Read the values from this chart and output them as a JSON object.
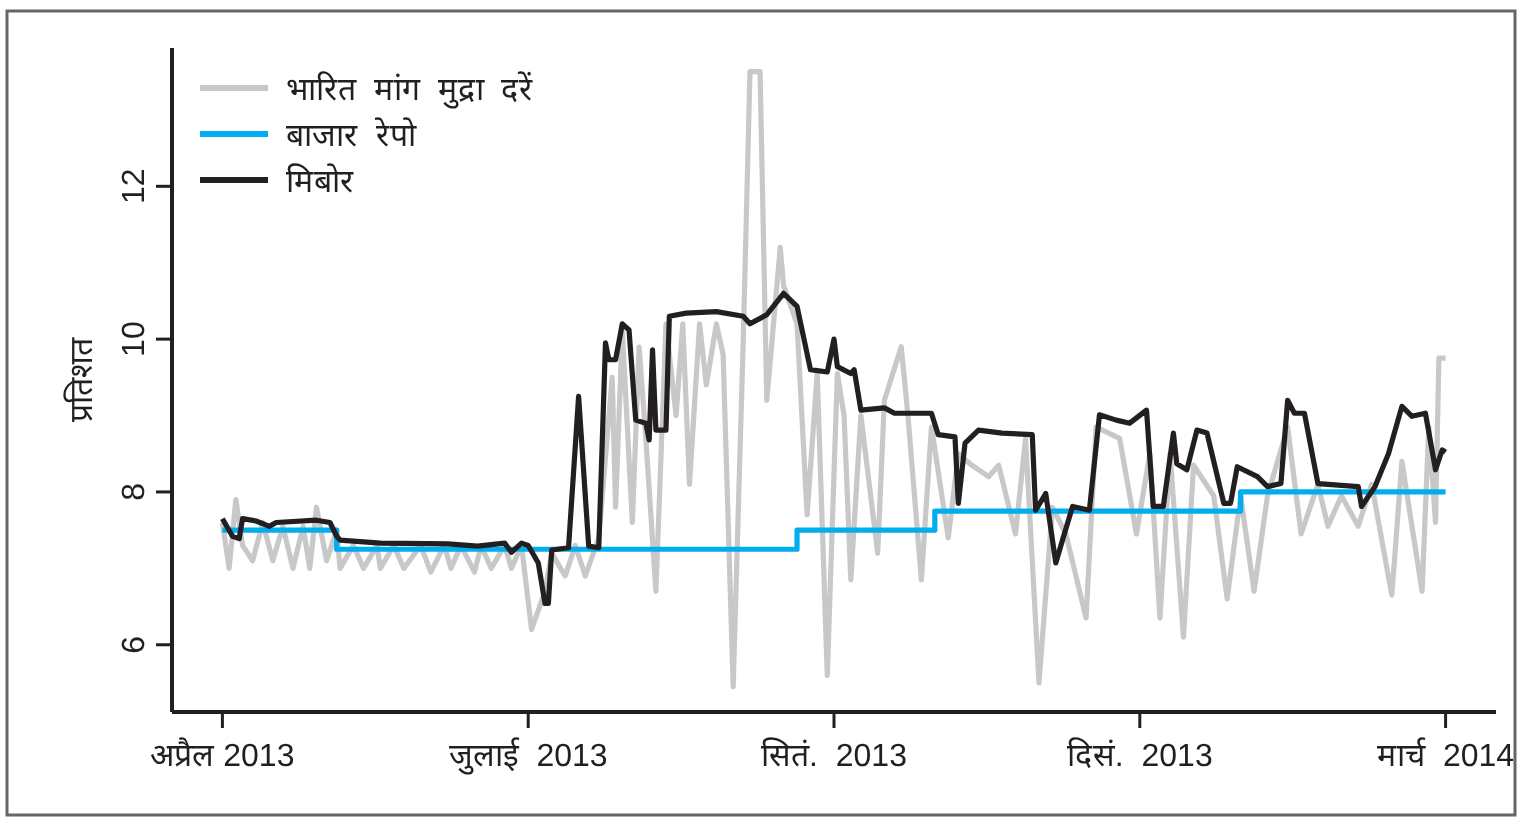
{
  "chart_data": {
    "type": "line",
    "ylabel": "प्रतिशत",
    "xlim": [
      "2013-03-17",
      "2014-04-15"
    ],
    "ylim": [
      5.12,
      13.81
    ],
    "xticks": [
      {
        "value": "2013-04-01",
        "label": "अप्रैल 2013"
      },
      {
        "value": "2013-07-01",
        "label": "जुलाई  2013"
      },
      {
        "value": "2013-09-30",
        "label": "सितं.  2013"
      },
      {
        "value": "2013-12-30",
        "label": "दिसं.  2013"
      },
      {
        "value": "2014-03-31",
        "label": "मार्च  2014"
      }
    ],
    "yticks": [
      6,
      8,
      10,
      12
    ],
    "legend": "top left",
    "grid": false,
    "series": [
      {
        "name": "भारित  मांग  मुद्रा  दरें",
        "color": "#c8c8c8",
        "type": "line",
        "x": [
          "2013-04-01",
          "2013-04-03",
          "2013-04-05",
          "2013-04-07",
          "2013-04-10",
          "2013-04-13",
          "2013-04-16",
          "2013-04-19",
          "2013-04-22",
          "2013-04-25",
          "2013-04-27",
          "2013-04-29",
          "2013-05-02",
          "2013-05-05",
          "2013-05-06",
          "2013-05-10",
          "2013-05-13",
          "2013-05-17",
          "2013-05-18",
          "2013-05-22",
          "2013-05-25",
          "2013-05-30",
          "2013-06-02",
          "2013-06-06",
          "2013-06-08",
          "2013-06-11",
          "2013-06-15",
          "2013-06-17",
          "2013-06-20",
          "2013-06-24",
          "2013-06-26",
          "2013-06-29",
          "2013-07-02",
          "2013-07-06",
          "2013-07-08",
          "2013-07-12",
          "2013-07-15",
          "2013-07-18",
          "2013-07-22",
          "2013-07-26",
          "2013-07-27",
          "2013-07-29",
          "2013-08-01",
          "2013-08-03",
          "2013-08-05",
          "2013-08-08",
          "2013-08-11",
          "2013-08-14",
          "2013-08-16",
          "2013-08-18",
          "2013-08-21",
          "2013-08-23",
          "2013-08-26",
          "2013-08-28",
          "2013-08-31",
          "2013-09-03",
          "2013-09-05",
          "2013-09-08",
          "2013-09-10",
          "2013-09-14",
          "2013-09-15",
          "2013-09-19",
          "2013-09-22",
          "2013-09-25",
          "2013-09-28",
          "2013-10-01",
          "2013-10-03",
          "2013-10-05",
          "2013-10-08",
          "2013-10-13",
          "2013-10-15",
          "2013-10-20",
          "2013-10-22",
          "2013-10-26",
          "2013-10-29",
          "2013-11-03",
          "2013-11-06",
          "2013-11-10",
          "2013-11-15",
          "2013-11-18",
          "2013-11-23",
          "2013-11-26",
          "2013-11-30",
          "2013-12-04",
          "2013-12-08",
          "2013-12-14",
          "2013-12-17",
          "2013-12-24",
          "2013-12-29",
          "2014-01-02",
          "2014-01-05",
          "2014-01-08",
          "2014-01-12",
          "2014-01-15",
          "2014-01-21",
          "2014-01-25",
          "2014-01-29",
          "2014-02-02",
          "2014-02-06",
          "2014-02-12",
          "2014-02-16",
          "2014-02-21",
          "2014-02-24",
          "2014-02-28",
          "2014-03-05",
          "2014-03-09",
          "2014-03-15",
          "2014-03-18",
          "2014-03-24",
          "2014-03-26",
          "2014-03-28",
          "2014-03-29",
          "2014-03-31"
        ],
        "values": [
          7.6,
          7.0,
          7.9,
          7.3,
          7.1,
          7.6,
          7.1,
          7.55,
          7.0,
          7.55,
          7.0,
          7.8,
          7.1,
          7.5,
          7.0,
          7.3,
          7.0,
          7.3,
          7.0,
          7.3,
          7.0,
          7.3,
          6.95,
          7.3,
          7.0,
          7.3,
          6.95,
          7.3,
          7.0,
          7.3,
          7.0,
          7.3,
          6.2,
          6.7,
          7.2,
          6.9,
          7.3,
          6.9,
          7.4,
          9.5,
          7.8,
          10.1,
          7.6,
          9.9,
          8.7,
          6.7,
          10.2,
          9.0,
          10.2,
          8.1,
          10.2,
          9.4,
          10.2,
          9.8,
          5.45,
          10.0,
          13.5,
          13.5,
          9.2,
          11.2,
          10.7,
          10.2,
          7.7,
          9.55,
          5.6,
          9.55,
          9.0,
          6.85,
          9.0,
          7.2,
          9.2,
          9.9,
          9.0,
          6.85,
          8.85,
          7.4,
          8.5,
          8.35,
          8.2,
          8.35,
          7.45,
          8.7,
          5.5,
          7.8,
          7.45,
          6.35,
          8.85,
          8.7,
          7.45,
          8.5,
          6.35,
          8.5,
          6.1,
          8.35,
          7.95,
          6.6,
          7.95,
          6.7,
          7.95,
          8.85,
          7.45,
          8.1,
          7.55,
          7.95,
          7.55,
          8.1,
          6.65,
          8.4,
          6.7,
          8.85,
          7.6,
          9.75,
          9.75
        ]
      },
      {
        "name": "बाजार  रेपो",
        "color": "#00aeef",
        "type": "step",
        "x": [
          "2013-04-01",
          "2013-05-05",
          "2013-09-19",
          "2013-10-30",
          "2014-01-29",
          "2014-03-31"
        ],
        "values": [
          7.5,
          7.25,
          7.5,
          7.75,
          8.0,
          8.0
        ]
      },
      {
        "name": "मिबोर",
        "color": "#231f20",
        "type": "line",
        "x": [
          "2013-04-01",
          "2013-04-04",
          "2013-04-06",
          "2013-04-07",
          "2013-04-11",
          "2013-04-15",
          "2013-04-17",
          "2013-04-29",
          "2013-05-03",
          "2013-05-05",
          "2013-05-06",
          "2013-05-18",
          "2013-06-07",
          "2013-06-16",
          "2013-06-24",
          "2013-06-26",
          "2013-06-29",
          "2013-07-01",
          "2013-07-04",
          "2013-07-06",
          "2013-07-07",
          "2013-07-08",
          "2013-07-13",
          "2013-07-16",
          "2013-07-19",
          "2013-07-22",
          "2013-07-24",
          "2013-07-25",
          "2013-07-27",
          "2013-07-29",
          "2013-07-31",
          "2013-08-02",
          "2013-08-05",
          "2013-08-06",
          "2013-08-07",
          "2013-08-08",
          "2013-08-11",
          "2013-08-12",
          "2013-08-17",
          "2013-08-26",
          "2013-09-03",
          "2013-09-05",
          "2013-09-10",
          "2013-09-15",
          "2013-09-19",
          "2013-09-23",
          "2013-09-28",
          "2013-09-30",
          "2013-10-01",
          "2013-10-05",
          "2013-10-06",
          "2013-10-08",
          "2013-10-15",
          "2013-10-18",
          "2013-10-29",
          "2013-10-31",
          "2013-11-05",
          "2013-11-06",
          "2013-11-08",
          "2013-11-12",
          "2013-11-19",
          "2013-11-28",
          "2013-11-29",
          "2013-12-02",
          "2013-12-05",
          "2013-12-07",
          "2013-12-10",
          "2013-12-15",
          "2013-12-18",
          "2013-12-23",
          "2013-12-27",
          "2014-01-01",
          "2014-01-03",
          "2014-01-06",
          "2014-01-09",
          "2014-01-10",
          "2014-01-13",
          "2014-01-16",
          "2014-01-19",
          "2014-01-24",
          "2014-01-26",
          "2014-01-28",
          "2014-02-03",
          "2014-02-06",
          "2014-02-10",
          "2014-02-12",
          "2014-02-14",
          "2014-02-17",
          "2014-02-21",
          "2014-03-05",
          "2014-03-06",
          "2014-03-10",
          "2014-03-14",
          "2014-03-18",
          "2014-03-21",
          "2014-03-25",
          "2014-03-28",
          "2014-03-30",
          "2014-03-31"
        ],
        "values": [
          7.65,
          7.42,
          7.39,
          7.65,
          7.62,
          7.55,
          7.6,
          7.63,
          7.6,
          7.42,
          7.37,
          7.33,
          7.32,
          7.29,
          7.33,
          7.21,
          7.33,
          7.3,
          7.07,
          6.54,
          6.54,
          7.24,
          7.27,
          9.25,
          7.29,
          7.27,
          9.95,
          9.73,
          9.73,
          10.2,
          10.12,
          8.94,
          8.9,
          8.68,
          9.86,
          8.81,
          8.81,
          10.3,
          10.34,
          10.36,
          10.3,
          10.2,
          10.32,
          10.6,
          10.43,
          9.6,
          9.57,
          10.0,
          9.64,
          9.55,
          9.6,
          9.07,
          9.1,
          9.03,
          9.03,
          8.75,
          8.72,
          7.85,
          8.64,
          8.81,
          8.77,
          8.75,
          7.76,
          7.98,
          7.07,
          7.37,
          7.81,
          7.76,
          9.01,
          8.94,
          8.9,
          9.07,
          7.81,
          7.81,
          8.77,
          8.37,
          8.29,
          8.81,
          8.77,
          7.85,
          7.85,
          8.33,
          8.2,
          8.07,
          8.11,
          9.2,
          9.03,
          9.03,
          8.11,
          8.07,
          7.81,
          8.07,
          8.5,
          9.12,
          8.99,
          9.03,
          8.29,
          8.55,
          8.52
        ]
      }
    ]
  }
}
